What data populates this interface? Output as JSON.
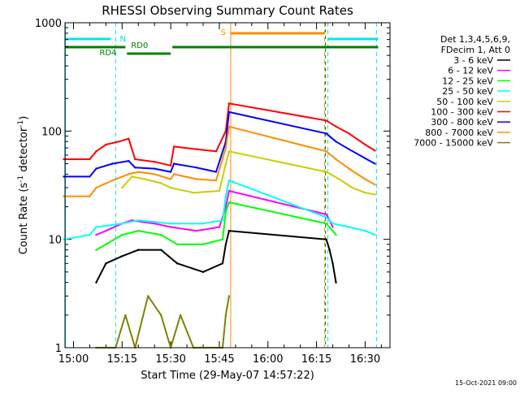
{
  "chart_data": {
    "type": "line",
    "title": "RHESSI Observing Summary Count Rates",
    "xlabel": "Start Time (29-May-07 14:57:22)",
    "ylabel_main": "Count Rate (s",
    "ylabel_sup1": "-1",
    "ylabel_mid": " detector",
    "ylabel_sup2": "-1",
    "ylabel_end": ")",
    "x_scale": "time",
    "y_scale": "log",
    "xlim": [
      "14:57:22",
      "16:37:40"
    ],
    "ylim": [
      1,
      1000
    ],
    "x_ticks": [
      "15:00",
      "15:15",
      "15:30",
      "15:45",
      "16:00",
      "16:15",
      "16:30"
    ],
    "y_ticks": [
      "1",
      "10",
      "100",
      "1000"
    ],
    "grid": false,
    "legend_placement": "right",
    "legend_header": [
      "Det 1,3,4,5,6,9,",
      "FDecim 1, Att 0"
    ],
    "footer_date": "15-Oct-2021 09:00",
    "flags": [
      {
        "label": "N",
        "color": "#00e5ee"
      },
      {
        "label": "S",
        "color": "#ff8c00"
      },
      {
        "label": "RD0",
        "color": "#008000"
      },
      {
        "label": "RD4",
        "color": "#008000"
      }
    ],
    "series": [
      {
        "name": "3 - 6 keV",
        "color": "#000000",
        "points": [
          [
            "15:07",
            4
          ],
          [
            "15:10",
            6
          ],
          [
            "15:15",
            7
          ],
          [
            "15:20",
            8
          ],
          [
            "15:27",
            8
          ],
          [
            "15:32",
            6
          ],
          [
            "15:40",
            5
          ],
          [
            "15:46",
            6
          ],
          [
            "15:47",
            9
          ],
          [
            "15:48",
            12
          ],
          [
            "16:18",
            10
          ],
          [
            "16:19",
            8
          ],
          [
            "16:20",
            6
          ],
          [
            "16:21",
            4
          ]
        ]
      },
      {
        "name": "6 - 12 keV",
        "color": "#ff00ff",
        "points": [
          [
            "15:07",
            11
          ],
          [
            "15:10",
            12
          ],
          [
            "15:15",
            14
          ],
          [
            "15:18",
            15
          ],
          [
            "15:25",
            14
          ],
          [
            "15:30",
            13
          ],
          [
            "15:38",
            12
          ],
          [
            "15:45",
            13
          ],
          [
            "15:47",
            20
          ],
          [
            "15:48",
            28
          ],
          [
            "16:18",
            17
          ],
          [
            "16:19",
            15
          ],
          [
            "16:20",
            13
          ]
        ]
      },
      {
        "name": "12 - 25 keV",
        "color": "#00ff00",
        "points": [
          [
            "15:07",
            8
          ],
          [
            "15:10",
            9
          ],
          [
            "15:15",
            11
          ],
          [
            "15:20",
            12
          ],
          [
            "15:27",
            11
          ],
          [
            "15:32",
            9
          ],
          [
            "15:40",
            9
          ],
          [
            "15:46",
            10
          ],
          [
            "15:47",
            18
          ],
          [
            "15:48",
            22
          ],
          [
            "16:18",
            14
          ],
          [
            "16:20",
            12
          ],
          [
            "16:21",
            11
          ]
        ]
      },
      {
        "name": "25 - 50 keV",
        "color": "#00ffff",
        "points": [
          [
            "14:57",
            10
          ],
          [
            "15:05",
            11
          ],
          [
            "15:07",
            13
          ],
          [
            "15:15",
            14
          ],
          [
            "15:20",
            15
          ],
          [
            "15:30",
            14
          ],
          [
            "15:40",
            14
          ],
          [
            "15:46",
            15
          ],
          [
            "15:47",
            25
          ],
          [
            "15:48",
            35
          ],
          [
            "16:18",
            16
          ],
          [
            "16:20",
            14
          ],
          [
            "16:25",
            13
          ],
          [
            "16:30",
            12
          ],
          [
            "16:33",
            11
          ]
        ]
      },
      {
        "name": "50 - 100 keV",
        "color": "#cccc00",
        "points": [
          [
            "15:15",
            30
          ],
          [
            "15:18",
            38
          ],
          [
            "15:22",
            36
          ],
          [
            "15:27",
            33
          ],
          [
            "15:30",
            30
          ],
          [
            "15:37",
            27
          ],
          [
            "15:45",
            28
          ],
          [
            "15:47",
            50
          ],
          [
            "15:48",
            65
          ],
          [
            "16:18",
            42
          ],
          [
            "16:22",
            36
          ],
          [
            "16:26",
            30
          ],
          [
            "16:30",
            27
          ],
          [
            "16:33",
            26
          ]
        ]
      },
      {
        "name": "100 - 300 keV",
        "color": "#ff0000",
        "points": [
          [
            "14:57",
            55
          ],
          [
            "15:05",
            55
          ],
          [
            "15:07",
            65
          ],
          [
            "15:10",
            75
          ],
          [
            "15:14",
            80
          ],
          [
            "15:17",
            85
          ],
          [
            "15:19",
            55
          ],
          [
            "15:25",
            52
          ],
          [
            "15:30",
            48
          ],
          [
            "15:31",
            72
          ],
          [
            "15:38",
            68
          ],
          [
            "15:44",
            65
          ],
          [
            "15:47",
            100
          ],
          [
            "15:48",
            180
          ],
          [
            "16:18",
            125
          ],
          [
            "16:21",
            110
          ],
          [
            "16:25",
            95
          ],
          [
            "16:30",
            75
          ],
          [
            "16:33",
            66
          ]
        ]
      },
      {
        "name": "300 - 800 keV",
        "color": "#0000ff",
        "points": [
          [
            "14:57",
            38
          ],
          [
            "15:05",
            38
          ],
          [
            "15:07",
            45
          ],
          [
            "15:12",
            50
          ],
          [
            "15:17",
            53
          ],
          [
            "15:19",
            46
          ],
          [
            "15:25",
            45
          ],
          [
            "15:30",
            42
          ],
          [
            "15:31",
            50
          ],
          [
            "15:38",
            46
          ],
          [
            "15:44",
            42
          ],
          [
            "15:47",
            80
          ],
          [
            "15:48",
            150
          ],
          [
            "16:18",
            95
          ],
          [
            "16:21",
            80
          ],
          [
            "16:25",
            68
          ],
          [
            "16:30",
            56
          ],
          [
            "16:33",
            50
          ]
        ]
      },
      {
        "name": "800 - 7000 keV",
        "color": "#ff8c00",
        "points": [
          [
            "14:57",
            25
          ],
          [
            "15:05",
            25
          ],
          [
            "15:07",
            30
          ],
          [
            "15:12",
            35
          ],
          [
            "15:17",
            40
          ],
          [
            "15:20",
            42
          ],
          [
            "15:25",
            40
          ],
          [
            "15:30",
            36
          ],
          [
            "15:31",
            40
          ],
          [
            "15:38",
            36
          ],
          [
            "15:44",
            35
          ],
          [
            "15:47",
            70
          ],
          [
            "15:48",
            110
          ],
          [
            "16:18",
            65
          ],
          [
            "16:21",
            55
          ],
          [
            "16:25",
            45
          ],
          [
            "16:30",
            36
          ],
          [
            "16:33",
            32
          ]
        ]
      },
      {
        "name": "7000 - 15000 keV",
        "color": "#808000",
        "points": [
          [
            "15:07",
            1
          ],
          [
            "15:13",
            1
          ],
          [
            "15:16",
            2
          ],
          [
            "15:19",
            1
          ],
          [
            "15:23",
            3
          ],
          [
            "15:27",
            2
          ],
          [
            "15:30",
            1
          ],
          [
            "15:33",
            2
          ],
          [
            "15:37",
            1
          ],
          [
            "15:40",
            1
          ],
          [
            "15:46",
            1
          ],
          [
            "15:47",
            2
          ],
          [
            "15:48",
            3
          ]
        ]
      }
    ]
  }
}
